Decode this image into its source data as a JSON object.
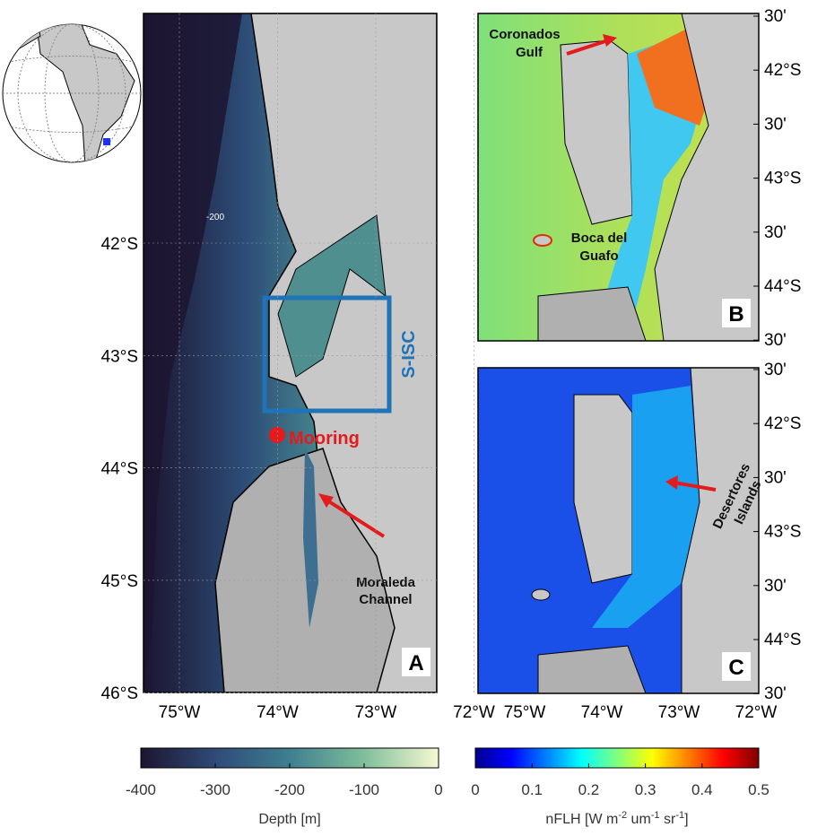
{
  "inset": {
    "description": "globe"
  },
  "panel_a": {
    "label": "A",
    "lat_ticks": [
      "42°S",
      "43°S",
      "44°S",
      "45°S",
      "46°S"
    ],
    "lon_ticks": [
      "75°W",
      "74°W",
      "73°W",
      "72°W"
    ],
    "box_label": "S-ISC",
    "mooring_label": "Mooring",
    "channel_label": [
      "Moraleda",
      "Channel"
    ],
    "contour_label": "-200"
  },
  "panel_b": {
    "label": "B",
    "lat_ticks": [
      "30'",
      "42°S",
      "30'",
      "43°S",
      "30'",
      "44°S",
      "30'"
    ],
    "gulf_label": [
      "Coronados",
      "Gulf"
    ],
    "boca_label": [
      "Boca del",
      "Guafo"
    ]
  },
  "panel_c": {
    "label": "C",
    "lat_ticks": [
      "30'",
      "42°S",
      "30'",
      "43°S",
      "30'",
      "44°S",
      "30'"
    ],
    "lon_ticks": [
      "75°W",
      "74°W",
      "73°W",
      "72°W"
    ],
    "islands_label": [
      "Desertores",
      "Islands"
    ]
  },
  "colorbar_depth": {
    "range": [
      -400,
      0
    ],
    "ticks": [
      -400,
      -300,
      -200,
      -100,
      0
    ],
    "label": "Depth [m]"
  },
  "colorbar_nflh": {
    "range": [
      0,
      0.5
    ],
    "ticks": [
      0,
      0.1,
      0.2,
      0.3,
      0.4,
      0.5
    ],
    "label_parts": [
      "nFLH [W m",
      "-2",
      " um",
      "-1",
      " sr",
      "-1",
      "]"
    ]
  }
}
